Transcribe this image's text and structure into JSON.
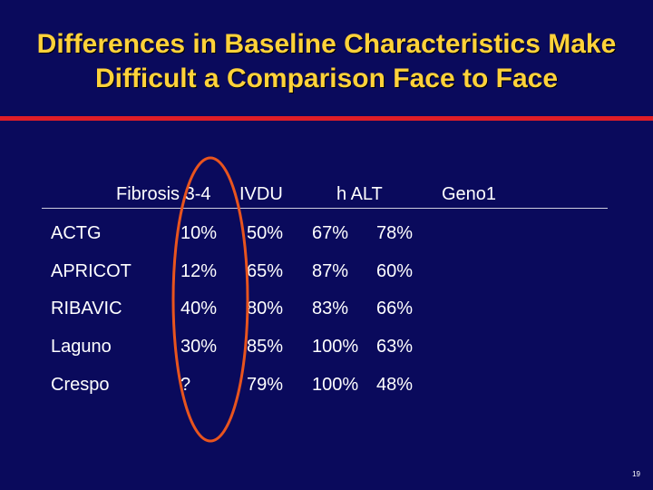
{
  "slide": {
    "title_line1": "Differences in Baseline Characteristics Make",
    "title_line2": "Difficult a Comparison Face to Face",
    "page_number": "19"
  },
  "colors": {
    "background": "#0a0a5c",
    "title": "#ffd23a",
    "rule": "#e11d27",
    "oval": "#e8541e",
    "text": "#ffffff"
  },
  "table": {
    "headers": [
      "Fibrosis 3-4",
      "IVDU",
      "h ALT",
      "Geno1"
    ],
    "rows": [
      {
        "name": "ACTG",
        "values": [
          "10%",
          "50%",
          "67%",
          "78%"
        ]
      },
      {
        "name": "APRICOT",
        "values": [
          "12%",
          "65%",
          "87%",
          "60%"
        ]
      },
      {
        "name": "RIBAVIC",
        "values": [
          "40%",
          "80%",
          "83%",
          "66%"
        ]
      },
      {
        "name": "Laguno",
        "values": [
          "30%",
          "85%",
          "100%",
          "63%"
        ]
      },
      {
        "name": "Crespo",
        "values": [
          "?",
          "79%",
          "100%",
          "48%"
        ]
      }
    ]
  }
}
